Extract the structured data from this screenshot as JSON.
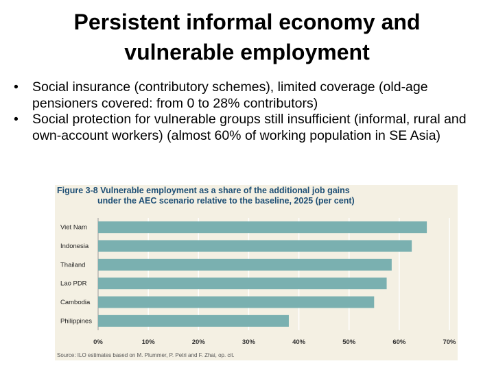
{
  "slide": {
    "title": "Persistent informal economy and vulnerable employment",
    "bullets": [
      "Social insurance (contributory schemes), limited coverage (old-age pensioners covered: from 0 to 28% contributors)",
      "Social protection for vulnerable groups still insufficient (informal, rural and own-account workers) (almost 60% of working population in  SE Asia)"
    ]
  },
  "figure": {
    "label": "Figure 3-8",
    "title_line1": "Vulnerable employment as a share of the additional job gains",
    "title_line2": "under the AEC scenario relative to the baseline, 2025 (per cent)",
    "source": "Source: ILO estimates based on M. Plummer, P. Petri and F. Zhai, op. cit."
  },
  "colors": {
    "bar": "#7ab0b0",
    "figure_bg": "#f4f0e3",
    "title_blue": "#1d4e74",
    "grid": "#ffffff"
  },
  "chart_data": {
    "type": "bar",
    "orientation": "horizontal",
    "categories": [
      "Viet Nam",
      "Indonesia",
      "Thailand",
      "Lao PDR",
      "Cambodia",
      "Philippines"
    ],
    "values": [
      65.5,
      62.5,
      58.5,
      57.5,
      55,
      38
    ],
    "xlim": [
      0,
      70
    ],
    "x_ticks": [
      "0%",
      "10%",
      "20%",
      "30%",
      "40%",
      "50%",
      "60%",
      "70%"
    ],
    "grid": true,
    "unit": "per cent"
  }
}
